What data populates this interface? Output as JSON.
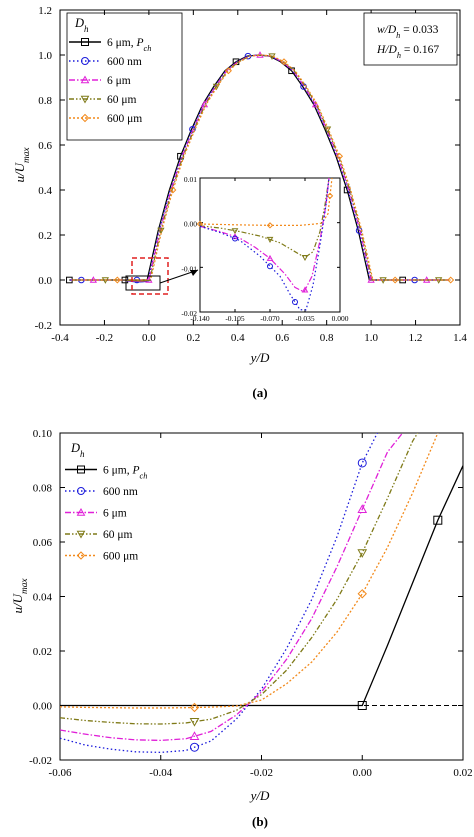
{
  "chart_data": [
    {
      "type": "line",
      "panel_label": "(a)",
      "xlabel": "y/D",
      "ylabel": "u/U",
      "ylabel_sub": "max",
      "xlim": [
        -0.4,
        1.4
      ],
      "ylim": [
        -0.2,
        1.2
      ],
      "x_ticks": [
        "-0.4",
        "-0.2",
        "0.0",
        "0.2",
        "0.4",
        "0.6",
        "0.8",
        "1.0",
        "1.2",
        "1.4"
      ],
      "y_ticks": [
        "-0.2",
        "0.0",
        "0.2",
        "0.4",
        "0.6",
        "0.8",
        "1.0",
        "1.2"
      ],
      "legend_title": "D",
      "legend_title_sub": "h",
      "legend_position": "top-left",
      "legend": [
        {
          "label": "6 μm, ",
          "label_italic": "P",
          "label_sub": "ch",
          "color": "#000000",
          "marker": "square",
          "dash": "solid"
        },
        {
          "label": "600 nm",
          "color": "#1a1adb",
          "marker": "circle",
          "dash": "dot"
        },
        {
          "label": "6 μm",
          "color": "#e020d8",
          "marker": "triangle",
          "dash": "dashdot"
        },
        {
          "label": "60 μm",
          "color": "#7f7a18",
          "marker": "tri-down",
          "dash": "dashdotdot"
        },
        {
          "label": "600 μm",
          "color": "#f28a1c",
          "marker": "diamond",
          "dash": "short-dot"
        }
      ],
      "annotation": {
        "line1": "w/D",
        "line1_sub": "h",
        "line1_val": " = 0.033",
        "line2": "H/D",
        "line2_sub": "h",
        "line2_val": " = 0.167"
      },
      "series_shape": "near-parabolic profile from y/D = 0 to 1, peak u/Umax = 1.0 at y/D = 0.5; zero outside",
      "series": [
        {
          "x": [
            -0.35,
            -0.3,
            -0.25,
            -0.2,
            -0.15,
            -0.1,
            -0.05,
            0.0,
            0.05,
            0.1,
            0.15,
            0.2,
            0.25,
            0.3,
            0.35,
            0.4,
            0.45,
            0.5,
            0.55,
            0.6,
            0.65,
            0.7,
            0.75,
            0.8,
            0.85,
            0.9,
            0.95,
            1.0,
            1.05,
            1.1,
            1.15,
            1.2,
            1.25,
            1.3,
            1.35
          ],
          "y": [
            0,
            0,
            0,
            0,
            0,
            0,
            0,
            0,
            0.22,
            0.4,
            0.55,
            0.67,
            0.78,
            0.86,
            0.93,
            0.97,
            0.995,
            1.0,
            0.995,
            0.97,
            0.93,
            0.86,
            0.78,
            0.67,
            0.55,
            0.4,
            0.22,
            0,
            0,
            0,
            0,
            0,
            0,
            0,
            0
          ]
        }
      ],
      "inset": {
        "xlim": [
          -0.14,
          0.0
        ],
        "ylim": [
          -0.02,
          0.01
        ],
        "x_ticks": [
          "-0.140",
          "-0.105",
          "-0.070",
          "-0.035",
          "0.000"
        ],
        "y_ticks": [
          "-0.02",
          "-0.01",
          "0.00",
          "0.01"
        ]
      }
    },
    {
      "type": "line",
      "panel_label": "(b)",
      "xlabel": "y/D",
      "ylabel": "u/U",
      "ylabel_sub": "max",
      "xlim": [
        -0.06,
        0.02
      ],
      "ylim": [
        -0.02,
        0.1
      ],
      "x_ticks": [
        "-0.06",
        "-0.04",
        "-0.02",
        "0.00",
        "0.02"
      ],
      "y_ticks": [
        "-0.02",
        "0.00",
        "0.02",
        "0.04",
        "0.06",
        "0.08",
        "0.10"
      ],
      "legend_title": "D",
      "legend_title_sub": "h",
      "legend_position": "top-left",
      "legend": [
        {
          "label": "6 μm, ",
          "label_italic": "P",
          "label_sub": "ch",
          "color": "#000000",
          "marker": "square",
          "dash": "solid"
        },
        {
          "label": "600 nm",
          "color": "#1a1adb",
          "marker": "circle",
          "dash": "dot"
        },
        {
          "label": "6 μm",
          "color": "#e020d8",
          "marker": "triangle",
          "dash": "dashdot"
        },
        {
          "label": "60 μm",
          "color": "#7f7a18",
          "marker": "tri-down",
          "dash": "dashdotdot"
        },
        {
          "label": "600 μm",
          "color": "#f28a1c",
          "marker": "diamond",
          "dash": "short-dot"
        }
      ],
      "series": [
        {
          "x": [
            -0.06,
            -0.04,
            -0.02,
            0.0,
            0.005,
            0.01,
            0.015,
            0.02
          ],
          "y": [
            0,
            0,
            0,
            0,
            0.022,
            0.045,
            0.068,
            0.088
          ],
          "markers_x": [
            0.0,
            0.015
          ]
        },
        {
          "x": [
            -0.06,
            -0.055,
            -0.05,
            -0.045,
            -0.04,
            -0.035,
            -0.03,
            -0.025,
            -0.02,
            -0.015,
            -0.01,
            -0.005,
            0.0,
            0.003
          ],
          "y": [
            -0.012,
            -0.0145,
            -0.016,
            -0.017,
            -0.0172,
            -0.0165,
            -0.013,
            -0.005,
            0.006,
            0.021,
            0.039,
            0.062,
            0.089,
            0.1
          ],
          "markers_x": [
            -0.0333,
            0.0
          ]
        },
        {
          "x": [
            -0.06,
            -0.055,
            -0.05,
            -0.045,
            -0.04,
            -0.035,
            -0.03,
            -0.025,
            -0.02,
            -0.015,
            -0.01,
            -0.005,
            0.0,
            0.005,
            0.008
          ],
          "y": [
            -0.009,
            -0.0105,
            -0.0118,
            -0.0126,
            -0.0128,
            -0.0122,
            -0.0095,
            -0.0035,
            0.005,
            0.017,
            0.032,
            0.051,
            0.072,
            0.093,
            0.1
          ],
          "markers_x": [
            -0.0333,
            0.0
          ]
        },
        {
          "x": [
            -0.06,
            -0.055,
            -0.05,
            -0.045,
            -0.04,
            -0.035,
            -0.03,
            -0.025,
            -0.02,
            -0.015,
            -0.01,
            -0.005,
            0.0,
            0.005,
            0.01,
            0.011
          ],
          "y": [
            -0.0045,
            -0.0055,
            -0.0062,
            -0.0067,
            -0.0068,
            -0.0064,
            -0.005,
            -0.0018,
            0.004,
            0.013,
            0.025,
            0.039,
            0.056,
            0.076,
            0.097,
            0.1
          ],
          "markers_x": [
            -0.0333,
            0.0
          ]
        },
        {
          "x": [
            -0.06,
            -0.055,
            -0.05,
            -0.045,
            -0.04,
            -0.035,
            -0.03,
            -0.025,
            -0.02,
            -0.015,
            -0.01,
            -0.005,
            0.0,
            0.005,
            0.01,
            0.015
          ],
          "y": [
            -0.0005,
            -0.0007,
            -0.0008,
            -0.0009,
            -0.0009,
            -0.0008,
            -0.0006,
            -0.0002,
            0.002,
            0.008,
            0.016,
            0.027,
            0.041,
            0.058,
            0.078,
            0.1
          ],
          "markers_x": [
            -0.0333,
            0.0
          ]
        }
      ],
      "baseline": {
        "y": 0,
        "dash": "dashed",
        "color": "#000000"
      }
    }
  ]
}
